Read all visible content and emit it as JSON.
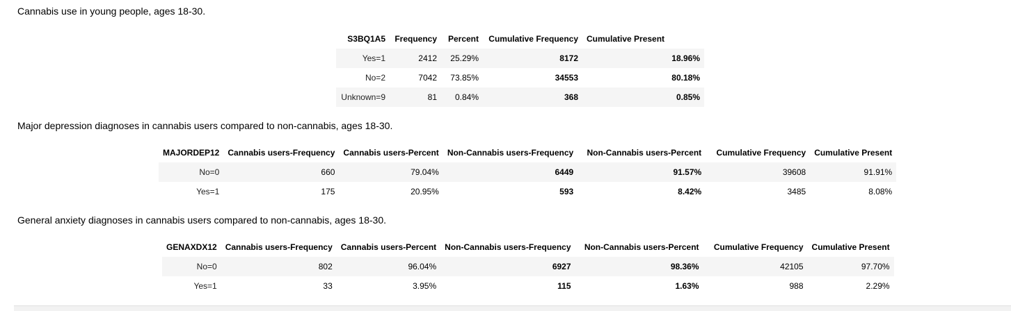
{
  "t1": {
    "caption": "Cannabis use in young people, ages 18-30.",
    "headers": [
      "S3BQ1A5",
      "Frequency",
      "Percent",
      "Cumulative Frequency",
      "Cumulative Present"
    ],
    "rows": [
      [
        "Yes=1",
        "2412",
        "25.29%",
        "8172",
        "18.96%"
      ],
      [
        "No=2",
        "7042",
        "73.85%",
        "34553",
        "80.18%"
      ],
      [
        "Unknown=9",
        "81",
        "0.84%",
        "368",
        "0.85%"
      ]
    ]
  },
  "t2": {
    "caption": "Major depression diagnoses in cannabis users compared to non-cannabis, ages 18-30.",
    "headers": [
      "MAJORDEP12",
      "Cannabis users-Frequency",
      "Cannabis users-Percent",
      "Non-Cannabis users-Frequency",
      "Non-Cannabis users-Percent",
      "Cumulative Frequency",
      "Cumulative Present"
    ],
    "rows": [
      [
        "No=0",
        "660",
        "79.04%",
        "6449",
        "91.57%",
        "39608",
        "91.91%"
      ],
      [
        "Yes=1",
        "175",
        "20.95%",
        "593",
        "8.42%",
        "3485",
        "8.08%"
      ]
    ]
  },
  "t3": {
    "caption": "General anxiety diagnoses in cannabis users compared to non-cannabis, ages 18-30.",
    "headers": [
      "GENAXDX12",
      "Cannabis users-Frequency",
      "Cannabis users-Percent",
      "Non-Cannabis users-Frequency",
      "Non-Cannabis users-Percent",
      "Cumulative Frequency",
      "Cumulative Present"
    ],
    "rows": [
      [
        "No=0",
        "802",
        "96.04%",
        "6927",
        "98.36%",
        "42105",
        "97.70%"
      ],
      [
        "Yes=1",
        "33",
        "3.95%",
        "115",
        "1.63%",
        "988",
        "2.29%"
      ]
    ]
  }
}
